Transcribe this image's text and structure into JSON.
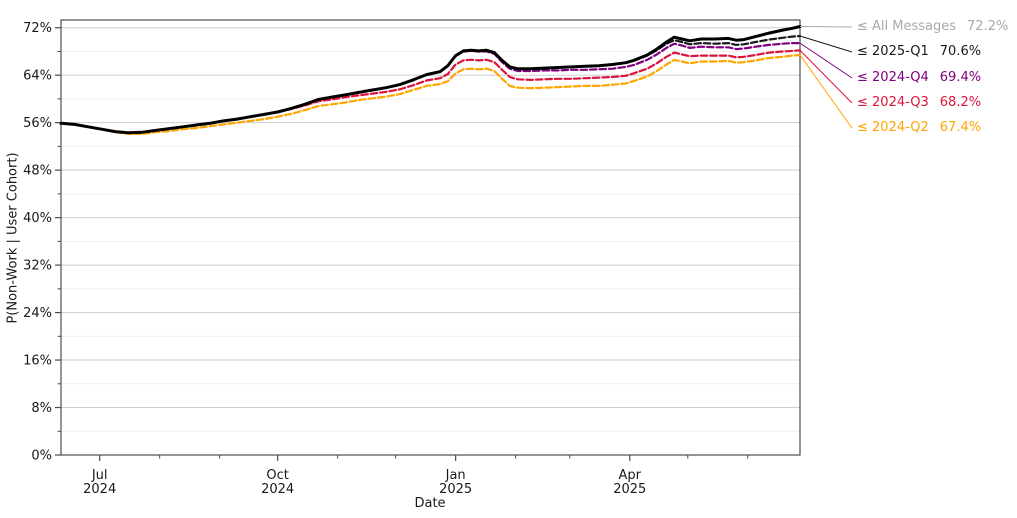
{
  "chart_data": {
    "type": "line",
    "title": "",
    "xlabel": "Date",
    "ylabel": "P(Non-Work | User Cohort)",
    "grid": "horizontal major and minor, light gray",
    "legend_position": "right outside, leader lines from line endpoints",
    "x_axis": {
      "unit": "days from start of plotted range (mid-June 2024 to late June 2025)",
      "range_days": [
        0,
        382
      ],
      "major_ticks": [
        {
          "day": 20,
          "line1": "Jul",
          "line2": "2024"
        },
        {
          "day": 112,
          "line1": "Oct",
          "line2": "2024"
        },
        {
          "day": 204,
          "line1": "Jan",
          "line2": "2025"
        },
        {
          "day": 294,
          "line1": "Apr",
          "line2": "2025"
        }
      ],
      "minor_tick_days": [
        51,
        82,
        143,
        173,
        235,
        263,
        324,
        355
      ]
    },
    "y_axis": {
      "min_pct": 0,
      "top_pct": 73.3,
      "major_tick_pcts": [
        0,
        8,
        16,
        24,
        32,
        40,
        48,
        56,
        64,
        72
      ],
      "minor_tick_pcts": [
        4,
        12,
        20,
        28,
        36,
        44,
        52,
        60,
        68
      ],
      "tick_suffix": "%"
    },
    "colors": {
      "all_messages_line": "#000000",
      "all_messages_label": "#a9a9a9",
      "q1_2025": "#1a1a1a",
      "q4_2024": "#800080",
      "q3_2024": "#dc143c",
      "q2_2024": "#ffa500",
      "grid_major": "#cdcdcd",
      "grid_minor": "#efefef",
      "spine": "#4d4d4d"
    },
    "series": [
      {
        "name": "All Messages",
        "legend_label": "≤ All Messages",
        "value_label": "72.2%",
        "end_value_pct": 72.2,
        "color": "#000000",
        "label_color": "#a9a9a9",
        "dashed": false,
        "width": 3,
        "points": [
          [
            0,
            55.9
          ],
          [
            7,
            55.7
          ],
          [
            14,
            55.3
          ],
          [
            21,
            54.9
          ],
          [
            28,
            54.5
          ],
          [
            35,
            54.3
          ],
          [
            42,
            54.4
          ],
          [
            49,
            54.7
          ],
          [
            56,
            55.0
          ],
          [
            63,
            55.3
          ],
          [
            70,
            55.6
          ],
          [
            77,
            55.9
          ],
          [
            84,
            56.3
          ],
          [
            91,
            56.6
          ],
          [
            98,
            57.0
          ],
          [
            105,
            57.4
          ],
          [
            112,
            57.8
          ],
          [
            119,
            58.4
          ],
          [
            126,
            59.1
          ],
          [
            133,
            59.9
          ],
          [
            140,
            60.3
          ],
          [
            147,
            60.7
          ],
          [
            154,
            61.1
          ],
          [
            161,
            61.5
          ],
          [
            168,
            61.9
          ],
          [
            175,
            62.4
          ],
          [
            182,
            63.2
          ],
          [
            189,
            64.1
          ],
          [
            196,
            64.6
          ],
          [
            200,
            65.6
          ],
          [
            204,
            67.3
          ],
          [
            208,
            68.1
          ],
          [
            212,
            68.2
          ],
          [
            216,
            68.1
          ],
          [
            220,
            68.2
          ],
          [
            224,
            67.8
          ],
          [
            228,
            66.5
          ],
          [
            232,
            65.4
          ],
          [
            236,
            65.1
          ],
          [
            243,
            65.1
          ],
          [
            250,
            65.2
          ],
          [
            257,
            65.3
          ],
          [
            264,
            65.4
          ],
          [
            271,
            65.5
          ],
          [
            278,
            65.6
          ],
          [
            285,
            65.8
          ],
          [
            292,
            66.1
          ],
          [
            296,
            66.5
          ],
          [
            303,
            67.4
          ],
          [
            308,
            68.4
          ],
          [
            313,
            69.6
          ],
          [
            317,
            70.4
          ],
          [
            321,
            70.1
          ],
          [
            325,
            69.8
          ],
          [
            331,
            70.1
          ],
          [
            338,
            70.1
          ],
          [
            345,
            70.2
          ],
          [
            349,
            69.9
          ],
          [
            353,
            70.0
          ],
          [
            359,
            70.5
          ],
          [
            366,
            71.1
          ],
          [
            373,
            71.6
          ],
          [
            378,
            71.9
          ],
          [
            382,
            72.2
          ]
        ]
      },
      {
        "name": "2025-Q1",
        "legend_label": "≤ 2025-Q1",
        "value_label": "70.6%",
        "end_value_pct": 70.6,
        "color": "#1a1a1a",
        "label_color": "#1a1a1a",
        "dashed": true,
        "width": 2.2,
        "points": [
          [
            296,
            66.4
          ],
          [
            303,
            67.3
          ],
          [
            308,
            68.2
          ],
          [
            313,
            69.3
          ],
          [
            317,
            69.9
          ],
          [
            321,
            69.6
          ],
          [
            325,
            69.2
          ],
          [
            331,
            69.4
          ],
          [
            338,
            69.3
          ],
          [
            345,
            69.4
          ],
          [
            349,
            69.1
          ],
          [
            353,
            69.2
          ],
          [
            359,
            69.6
          ],
          [
            366,
            70.0
          ],
          [
            373,
            70.3
          ],
          [
            378,
            70.5
          ],
          [
            382,
            70.6
          ]
        ]
      },
      {
        "name": "2024-Q4",
        "legend_label": "≤ 2024-Q4",
        "value_label": "69.4%",
        "end_value_pct": 69.4,
        "color": "#800080",
        "label_color": "#800080",
        "dashed": true,
        "width": 2.2,
        "points": [
          [
            204,
            67.2
          ],
          [
            208,
            68.0
          ],
          [
            212,
            68.1
          ],
          [
            216,
            68.0
          ],
          [
            220,
            68.0
          ],
          [
            224,
            67.6
          ],
          [
            228,
            66.2
          ],
          [
            232,
            65.1
          ],
          [
            236,
            64.7
          ],
          [
            243,
            64.7
          ],
          [
            250,
            64.8
          ],
          [
            257,
            64.8
          ],
          [
            264,
            64.9
          ],
          [
            271,
            64.9
          ],
          [
            278,
            65.0
          ],
          [
            285,
            65.1
          ],
          [
            292,
            65.4
          ],
          [
            296,
            65.7
          ],
          [
            303,
            66.6
          ],
          [
            308,
            67.5
          ],
          [
            313,
            68.6
          ],
          [
            317,
            69.3
          ],
          [
            321,
            69.0
          ],
          [
            325,
            68.6
          ],
          [
            331,
            68.8
          ],
          [
            338,
            68.7
          ],
          [
            345,
            68.7
          ],
          [
            349,
            68.4
          ],
          [
            353,
            68.5
          ],
          [
            359,
            68.8
          ],
          [
            366,
            69.1
          ],
          [
            373,
            69.3
          ],
          [
            378,
            69.4
          ],
          [
            382,
            69.4
          ]
        ]
      },
      {
        "name": "2024-Q3",
        "legend_label": "≤ 2024-Q3",
        "value_label": "68.2%",
        "end_value_pct": 68.2,
        "color": "#dc143c",
        "label_color": "#dc143c",
        "dashed": true,
        "width": 2.2,
        "points": [
          [
            112,
            57.8
          ],
          [
            119,
            58.3
          ],
          [
            126,
            58.9
          ],
          [
            133,
            59.6
          ],
          [
            140,
            59.9
          ],
          [
            147,
            60.3
          ],
          [
            154,
            60.6
          ],
          [
            161,
            60.9
          ],
          [
            168,
            61.2
          ],
          [
            175,
            61.6
          ],
          [
            182,
            62.3
          ],
          [
            189,
            63.1
          ],
          [
            196,
            63.5
          ],
          [
            200,
            64.2
          ],
          [
            204,
            65.8
          ],
          [
            208,
            66.5
          ],
          [
            212,
            66.6
          ],
          [
            216,
            66.5
          ],
          [
            220,
            66.6
          ],
          [
            224,
            66.2
          ],
          [
            228,
            64.9
          ],
          [
            232,
            63.7
          ],
          [
            236,
            63.3
          ],
          [
            243,
            63.2
          ],
          [
            250,
            63.3
          ],
          [
            257,
            63.4
          ],
          [
            264,
            63.4
          ],
          [
            271,
            63.5
          ],
          [
            278,
            63.6
          ],
          [
            285,
            63.7
          ],
          [
            292,
            63.9
          ],
          [
            296,
            64.3
          ],
          [
            303,
            65.1
          ],
          [
            308,
            66.0
          ],
          [
            313,
            67.1
          ],
          [
            317,
            67.8
          ],
          [
            321,
            67.5
          ],
          [
            325,
            67.2
          ],
          [
            331,
            67.3
          ],
          [
            338,
            67.3
          ],
          [
            345,
            67.3
          ],
          [
            349,
            67.0
          ],
          [
            353,
            67.1
          ],
          [
            359,
            67.4
          ],
          [
            366,
            67.8
          ],
          [
            373,
            68.0
          ],
          [
            378,
            68.1
          ],
          [
            382,
            68.2
          ]
        ]
      },
      {
        "name": "2024-Q2",
        "legend_label": "≤ 2024-Q2",
        "value_label": "67.4%",
        "end_value_pct": 67.4,
        "color": "#ffa500",
        "label_color": "#ffa500",
        "dashed": true,
        "width": 2.2,
        "points": [
          [
            28,
            54.4
          ],
          [
            35,
            54.1
          ],
          [
            42,
            54.1
          ],
          [
            49,
            54.4
          ],
          [
            56,
            54.6
          ],
          [
            63,
            54.9
          ],
          [
            70,
            55.1
          ],
          [
            77,
            55.4
          ],
          [
            84,
            55.7
          ],
          [
            91,
            56.0
          ],
          [
            98,
            56.3
          ],
          [
            105,
            56.6
          ],
          [
            112,
            57.0
          ],
          [
            119,
            57.5
          ],
          [
            126,
            58.1
          ],
          [
            133,
            58.8
          ],
          [
            140,
            59.1
          ],
          [
            147,
            59.4
          ],
          [
            154,
            59.8
          ],
          [
            161,
            60.1
          ],
          [
            168,
            60.4
          ],
          [
            175,
            60.8
          ],
          [
            182,
            61.5
          ],
          [
            189,
            62.2
          ],
          [
            196,
            62.5
          ],
          [
            200,
            63.0
          ],
          [
            204,
            64.3
          ],
          [
            208,
            65.0
          ],
          [
            212,
            65.1
          ],
          [
            216,
            65.0
          ],
          [
            220,
            65.1
          ],
          [
            224,
            64.7
          ],
          [
            228,
            63.4
          ],
          [
            232,
            62.2
          ],
          [
            236,
            61.9
          ],
          [
            243,
            61.8
          ],
          [
            250,
            61.9
          ],
          [
            257,
            62.0
          ],
          [
            264,
            62.1
          ],
          [
            271,
            62.2
          ],
          [
            278,
            62.2
          ],
          [
            285,
            62.4
          ],
          [
            292,
            62.6
          ],
          [
            296,
            63.0
          ],
          [
            303,
            63.8
          ],
          [
            308,
            64.7
          ],
          [
            313,
            65.8
          ],
          [
            317,
            66.6
          ],
          [
            321,
            66.3
          ],
          [
            325,
            66.0
          ],
          [
            331,
            66.3
          ],
          [
            338,
            66.3
          ],
          [
            345,
            66.4
          ],
          [
            349,
            66.1
          ],
          [
            353,
            66.2
          ],
          [
            359,
            66.5
          ],
          [
            366,
            66.9
          ],
          [
            373,
            67.1
          ],
          [
            378,
            67.3
          ],
          [
            382,
            67.4
          ]
        ]
      }
    ]
  }
}
